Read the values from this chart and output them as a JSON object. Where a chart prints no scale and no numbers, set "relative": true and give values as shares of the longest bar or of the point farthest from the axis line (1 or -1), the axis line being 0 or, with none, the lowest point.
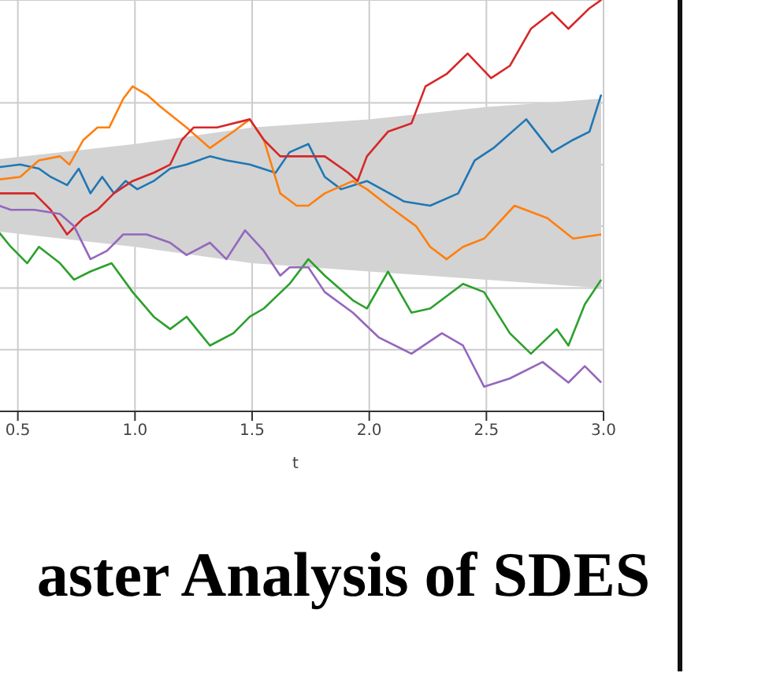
{
  "chart_data": {
    "type": "line",
    "title": "aster Analysis of SDES",
    "xlabel": "t",
    "relative": true,
    "grid": true,
    "marker": "none",
    "xlim": [
      0.37,
      3.0
    ],
    "xticks": [
      {
        "value": 0.5,
        "label": "0.5"
      },
      {
        "value": 1.0,
        "label": "1.0"
      },
      {
        "value": 1.5,
        "label": "1.5"
      },
      {
        "value": 2.0,
        "label": "2.0"
      },
      {
        "value": 2.5,
        "label": "2.5"
      },
      {
        "value": 3.0,
        "label": "3.0"
      }
    ],
    "series": [
      {
        "type": "area",
        "color": "#d3d3d3",
        "x": [
          0.37,
          1.0,
          1.5,
          2.0,
          2.5,
          2.99
        ],
        "values": [
          null,
          null,
          null,
          null,
          null,
          null
        ],
        "lower": [
          0.44,
          0.4,
          0.36,
          0.34,
          0.32,
          0.3
        ],
        "upper": [
          0.61,
          0.65,
          0.69,
          0.71,
          0.74,
          0.76
        ]
      },
      {
        "color": "#1f77b4",
        "x": [
          0.37,
          0.51,
          0.59,
          0.64,
          0.71,
          0.76,
          0.81,
          0.86,
          0.91,
          0.96,
          1.01,
          1.08,
          1.15,
          1.22,
          1.32,
          1.39,
          1.49,
          1.6,
          1.66,
          1.74,
          1.81,
          1.88,
          1.99,
          2.15,
          2.26,
          2.38,
          2.45,
          2.53,
          2.67,
          2.78,
          2.87,
          2.94,
          2.99
        ],
        "values": [
          0.59,
          0.6,
          0.59,
          0.57,
          0.55,
          0.59,
          0.53,
          0.57,
          0.53,
          0.56,
          0.54,
          0.56,
          0.59,
          0.6,
          0.62,
          0.61,
          0.6,
          0.58,
          0.63,
          0.65,
          0.57,
          0.54,
          0.56,
          0.51,
          0.5,
          0.53,
          0.61,
          0.64,
          0.71,
          0.63,
          0.66,
          0.68,
          0.77
        ]
      },
      {
        "color": "#ff7f0e",
        "x": [
          0.37,
          0.51,
          0.59,
          0.68,
          0.72,
          0.78,
          0.84,
          0.89,
          0.95,
          0.99,
          1.05,
          1.11,
          1.22,
          1.32,
          1.42,
          1.49,
          1.55,
          1.62,
          1.69,
          1.74,
          1.81,
          1.93,
          1.99,
          2.08,
          2.2,
          2.26,
          2.33,
          2.4,
          2.49,
          2.62,
          2.76,
          2.87,
          2.99
        ],
        "values": [
          0.56,
          0.57,
          0.61,
          0.62,
          0.6,
          0.66,
          0.69,
          0.69,
          0.76,
          0.79,
          0.77,
          0.74,
          0.69,
          0.64,
          0.68,
          0.71,
          0.66,
          0.53,
          0.5,
          0.5,
          0.53,
          0.56,
          0.54,
          0.5,
          0.45,
          0.4,
          0.37,
          0.4,
          0.42,
          0.5,
          0.47,
          0.42,
          0.43
        ]
      },
      {
        "color": "#d62728",
        "x": [
          0.37,
          0.51,
          0.57,
          0.64,
          0.71,
          0.78,
          0.84,
          0.91,
          0.99,
          1.08,
          1.15,
          1.2,
          1.25,
          1.35,
          1.49,
          1.55,
          1.62,
          1.7,
          1.81,
          1.91,
          1.95,
          1.99,
          2.08,
          2.18,
          2.24,
          2.33,
          2.42,
          2.52,
          2.6,
          2.69,
          2.78,
          2.85,
          2.94,
          2.99
        ],
        "values": [
          0.53,
          0.53,
          0.53,
          0.49,
          0.43,
          0.47,
          0.49,
          0.53,
          0.56,
          0.58,
          0.6,
          0.66,
          0.69,
          0.69,
          0.71,
          0.66,
          0.62,
          0.62,
          0.62,
          0.58,
          0.56,
          0.62,
          0.68,
          0.7,
          0.79,
          0.82,
          0.87,
          0.81,
          0.84,
          0.93,
          0.97,
          0.93,
          0.98,
          1.0
        ]
      },
      {
        "color": "#2ca02c",
        "x": [
          0.37,
          0.47,
          0.54,
          0.59,
          0.68,
          0.74,
          0.81,
          0.9,
          0.99,
          1.08,
          1.15,
          1.22,
          1.32,
          1.42,
          1.49,
          1.55,
          1.66,
          1.74,
          1.81,
          1.93,
          1.99,
          2.08,
          2.18,
          2.26,
          2.4,
          2.49,
          2.6,
          2.69,
          2.8,
          2.85,
          2.92,
          2.99
        ],
        "values": [
          0.47,
          0.4,
          0.36,
          0.4,
          0.36,
          0.32,
          0.34,
          0.36,
          0.29,
          0.23,
          0.2,
          0.23,
          0.16,
          0.19,
          0.23,
          0.25,
          0.31,
          0.37,
          0.33,
          0.27,
          0.25,
          0.34,
          0.24,
          0.25,
          0.31,
          0.29,
          0.19,
          0.14,
          0.2,
          0.16,
          0.26,
          0.32
        ]
      },
      {
        "color": "#9467bd",
        "x": [
          0.37,
          0.47,
          0.57,
          0.68,
          0.74,
          0.81,
          0.88,
          0.95,
          1.05,
          1.15,
          1.22,
          1.32,
          1.39,
          1.47,
          1.55,
          1.62,
          1.66,
          1.74,
          1.81,
          1.93,
          2.04,
          2.18,
          2.31,
          2.4,
          2.49,
          2.6,
          2.74,
          2.85,
          2.92,
          2.99
        ],
        "values": [
          0.51,
          0.49,
          0.49,
          0.48,
          0.45,
          0.37,
          0.39,
          0.43,
          0.43,
          0.41,
          0.38,
          0.41,
          0.37,
          0.44,
          0.39,
          0.33,
          0.35,
          0.35,
          0.29,
          0.24,
          0.18,
          0.14,
          0.19,
          0.16,
          0.06,
          0.08,
          0.12,
          0.07,
          0.11,
          0.07
        ]
      }
    ]
  }
}
